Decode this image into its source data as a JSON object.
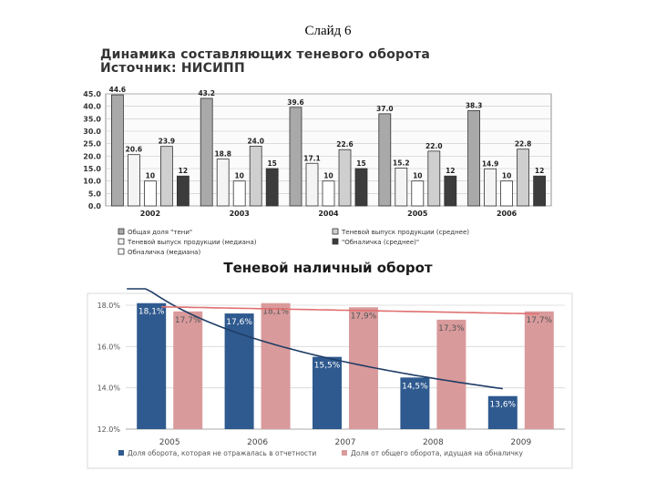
{
  "slide": {
    "title": "Слайд 6"
  },
  "chart_data": [
    {
      "type": "bar",
      "title": "Динамика составляющих теневого оборота",
      "subtitle": "Источник: НИСИПП",
      "categories": [
        "2002",
        "2003",
        "2004",
        "2005",
        "2006"
      ],
      "ylim": [
        0,
        45
      ],
      "yticks": [
        "0.0",
        "5.0",
        "10.0",
        "15.0",
        "20.0",
        "25.0",
        "30.0",
        "35.0",
        "40.0",
        "45.0"
      ],
      "series": [
        {
          "name": "Общая доля \"тени\"",
          "values": [
            44.6,
            43.2,
            39.6,
            37.0,
            38.3
          ],
          "labels": [
            "44.6",
            "43.2",
            "39.6",
            "37.0",
            "38.3"
          ],
          "color": "#a9a9a9"
        },
        {
          "name": "Теневой выпуск продукции (медиана)",
          "values": [
            20.6,
            18.8,
            17.1,
            15.2,
            14.9
          ],
          "labels": [
            "20.6",
            "18.8",
            "17.1",
            "15.2",
            "14.9"
          ],
          "color": "#f4f4f4"
        },
        {
          "name": "Обналичка (медиана)",
          "values": [
            10,
            10,
            10,
            10,
            10
          ],
          "labels": [
            "10",
            "10",
            "10",
            "10",
            "10"
          ],
          "color": "#ffffff"
        },
        {
          "name": "Теневой выпуск продукции (среднее)",
          "values": [
            23.9,
            24.0,
            22.6,
            22.0,
            22.8
          ],
          "labels": [
            "23.9",
            "24.0",
            "22.6",
            "22.0",
            "22.8"
          ],
          "color": "#cfcfcf"
        },
        {
          "name": "\"Обналичка (среднее)\"",
          "values": [
            12,
            15,
            15,
            12,
            12
          ],
          "labels": [
            "12",
            "15",
            "15",
            "12",
            "12"
          ],
          "color": "#3c3c3c"
        }
      ],
      "legend": [
        "Общая доля \"тени\"",
        "Теневой выпуск продукции (среднее)",
        "Теневой выпуск продукции (медиана)",
        "\"Обналичка (среднее)\"",
        "Обналичка (медиана)"
      ],
      "legend_colors": [
        "#a9a9a9",
        "#cfcfcf",
        "#f4f4f4",
        "#3c3c3c",
        "#ffffff"
      ]
    },
    {
      "type": "bar",
      "title": "Теневой наличный оборот",
      "categories": [
        "2005",
        "2006",
        "2007",
        "2008",
        "2009"
      ],
      "ylim": [
        12.0,
        18.0
      ],
      "yticks": [
        "12.0%",
        "14.0%",
        "16.0%",
        "18.0%"
      ],
      "series": [
        {
          "name": "Доля оборота, которая не отражалась в отчетности",
          "values": [
            18.1,
            17.6,
            15.5,
            14.5,
            13.6
          ],
          "labels": [
            "18,1%",
            "17,6%",
            "15,5%",
            "14,5%",
            "13,6%"
          ],
          "color": "#2f5a8f"
        },
        {
          "name": "Доля от общего оборота, идущая на обналичку",
          "values": [
            17.7,
            18.1,
            17.9,
            17.3,
            17.7
          ],
          "labels": [
            "17,7%",
            "18,1%",
            "17,9%",
            "17,3%",
            "17,7%"
          ],
          "color": "#d99a9b"
        }
      ],
      "trendlines": [
        {
          "series": "Доля оборота, которая не отражалась в отчетности",
          "color": "#1f3d66"
        },
        {
          "series": "Доля от общего оборота, идущая на обналичку",
          "color": "#e07070"
        }
      ],
      "legend": [
        "Доля оборота, которая не отражалась в отчетности",
        "Доля от общего оборота, идущая на обналичку"
      ]
    }
  ]
}
